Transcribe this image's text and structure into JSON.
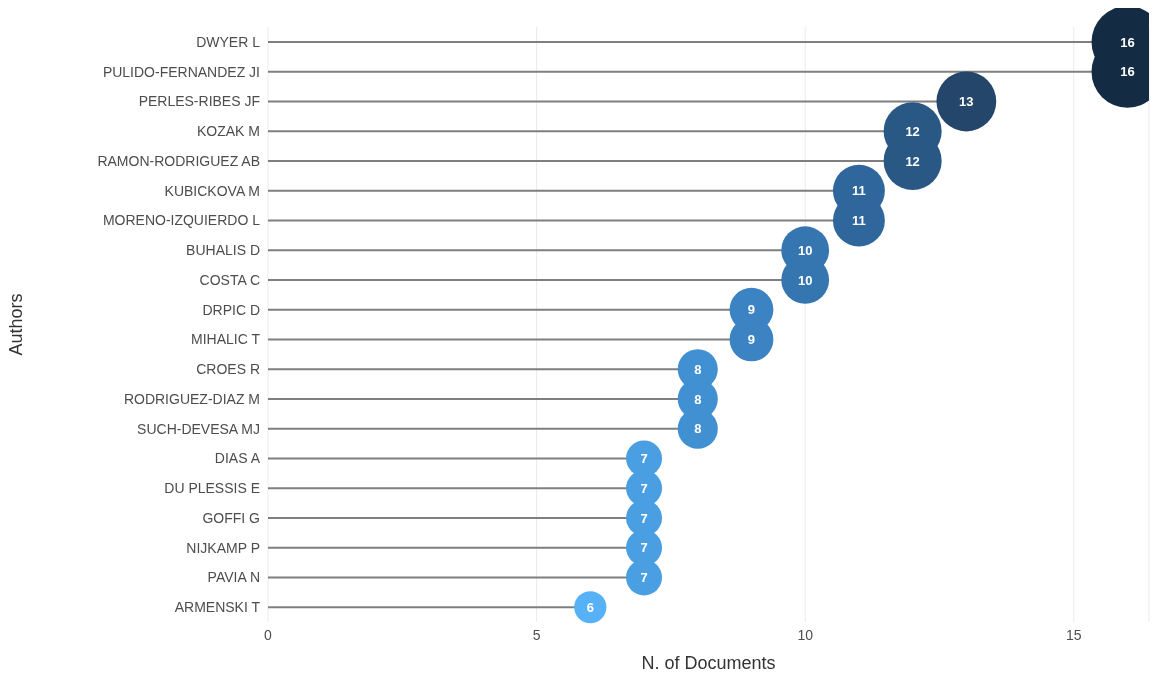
{
  "chart_data": {
    "type": "lollipop",
    "orientation": "horizontal",
    "xlabel": "N. of Documents",
    "ylabel": "Authors",
    "categories": [
      "DWYER L",
      "PULIDO-FERNANDEZ JI",
      "PERLES-RIBES JF",
      "KOZAK M",
      "RAMON-RODRIGUEZ AB",
      "KUBICKOVA M",
      "MORENO-IZQUIERDO L",
      "BUHALIS D",
      "COSTA C",
      "DRPIC D",
      "MIHALIC T",
      "CROES R",
      "RODRIGUEZ-DIAZ M",
      "SUCH-DEVESA MJ",
      "DIAS A",
      "DU PLESSIS E",
      "GOFFI G",
      "NIJKAMP P",
      "PAVIA N",
      "ARMENSKI T"
    ],
    "values": [
      16,
      16,
      13,
      12,
      12,
      11,
      11,
      10,
      10,
      9,
      9,
      8,
      8,
      8,
      7,
      7,
      7,
      7,
      7,
      6
    ],
    "colors": [
      "#132b43",
      "#132b43",
      "#24466b",
      "#2a5885",
      "#2a5885",
      "#2f679c",
      "#2f679c",
      "#3575b0",
      "#3575b0",
      "#3b83c3",
      "#3b83c3",
      "#4190d2",
      "#4190d2",
      "#4190d2",
      "#4a9fe2",
      "#4a9fe2",
      "#4a9fe2",
      "#4a9fe2",
      "#4a9fe2",
      "#56b1f7"
    ],
    "sizes": [
      1,
      1,
      0.69,
      0.65,
      0.65,
      0.52,
      0.52,
      0.44,
      0.44,
      0.37,
      0.37,
      0.31,
      0.31,
      0.31,
      0.25,
      0.25,
      0.25,
      0.25,
      0.25,
      0.2
    ],
    "xlim": [
      0,
      16.4
    ],
    "xticks": [
      0,
      5,
      10,
      15
    ],
    "grid": "x",
    "data_labels": true
  }
}
